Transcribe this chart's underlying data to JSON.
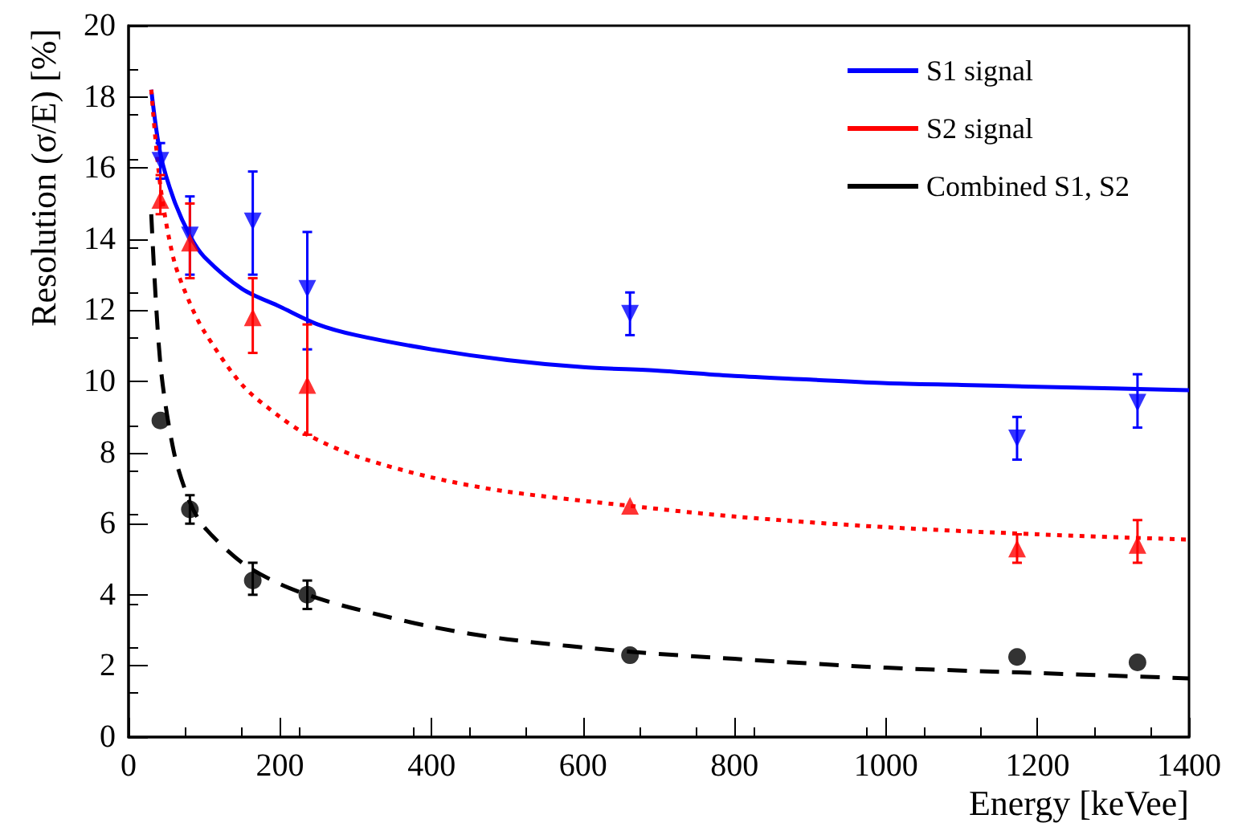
{
  "chart_data": {
    "type": "scatter",
    "xlabel": "Energy [keVee]",
    "ylabel": "Resolution (σ/E) [%]",
    "xlim": [
      0,
      1400
    ],
    "xticks": [
      0,
      200,
      400,
      600,
      800,
      1000,
      1200,
      1400
    ],
    "ylim": [
      0,
      20
    ],
    "yticks": [
      0,
      2,
      4,
      6,
      8,
      10,
      12,
      14,
      16,
      18,
      20
    ],
    "grid": false,
    "legend": "top right",
    "series": [
      {
        "color": "#0000ff",
        "marker": "triangle",
        "x": [
          42,
          81,
          164,
          236,
          662,
          1173,
          1332
        ],
        "values": [
          16.2,
          14.1,
          14.5,
          12.6,
          11.9,
          8.4,
          9.4
        ],
        "errors": [
          [
            15.7,
            16.7
          ],
          [
            13.0,
            15.2
          ],
          [
            13.0,
            15.9
          ],
          [
            10.9,
            14.2
          ],
          [
            11.3,
            12.5
          ],
          [
            7.8,
            9.0
          ],
          [
            8.7,
            10.2
          ]
        ]
      },
      {
        "color": "#ff0000",
        "marker": "triangle",
        "x": [
          42,
          81,
          164,
          236,
          662,
          1173,
          1332
        ],
        "values": [
          15.1,
          13.9,
          11.8,
          9.9,
          6.5,
          5.3,
          5.4
        ],
        "errors": [
          [
            14.7,
            15.8
          ],
          [
            12.9,
            15.0
          ],
          [
            10.8,
            12.9
          ],
          [
            8.5,
            11.6
          ],
          null,
          [
            4.9,
            5.7
          ],
          [
            4.9,
            6.1
          ]
        ]
      },
      {
        "color": "#000000",
        "marker": "circle",
        "x": [
          42,
          81,
          164,
          236,
          662,
          1173,
          1332
        ],
        "values": [
          8.9,
          6.4,
          4.4,
          4.0,
          2.3,
          2.25,
          2.1
        ],
        "errors": [
          null,
          [
            6.0,
            6.8
          ],
          [
            4.0,
            4.9
          ],
          [
            3.6,
            4.4
          ],
          null,
          null,
          null
        ]
      },
      {
        "type": "line",
        "name": "S1 signal",
        "color": "#0000ff",
        "line_style": "solid",
        "marker": "none",
        "x": [
          30,
          42,
          60,
          81,
          100,
          150,
          200,
          250,
          300,
          400,
          500,
          600,
          700,
          800,
          900,
          1000,
          1100,
          1200,
          1300,
          1400
        ],
        "values": [
          18.2,
          16.4,
          15.1,
          14.1,
          13.5,
          12.6,
          12.1,
          11.6,
          11.3,
          10.9,
          10.6,
          10.4,
          10.3,
          10.15,
          10.05,
          9.95,
          9.9,
          9.85,
          9.8,
          9.75
        ]
      },
      {
        "type": "line",
        "name": "S2 signal",
        "color": "#ff0000",
        "line_style": "dotted",
        "marker": "none",
        "x": [
          30,
          42,
          60,
          81,
          100,
          150,
          200,
          236,
          300,
          400,
          500,
          662,
          800,
          1000,
          1200,
          1400
        ],
        "values": [
          18.2,
          15.5,
          13.4,
          12.2,
          11.4,
          9.9,
          9.0,
          8.5,
          7.9,
          7.3,
          6.9,
          6.5,
          6.2,
          5.9,
          5.7,
          5.55
        ]
      },
      {
        "type": "line",
        "name": "Combined S1, S2",
        "color": "#000000",
        "line_style": "dashed",
        "marker": "none",
        "x": [
          30,
          42,
          60,
          81,
          100,
          150,
          200,
          250,
          300,
          400,
          500,
          662,
          800,
          1000,
          1200,
          1400
        ],
        "values": [
          14.7,
          10.5,
          8.0,
          6.6,
          5.9,
          4.9,
          4.3,
          3.9,
          3.6,
          3.1,
          2.75,
          2.4,
          2.2,
          1.95,
          1.8,
          1.65
        ]
      }
    ]
  }
}
